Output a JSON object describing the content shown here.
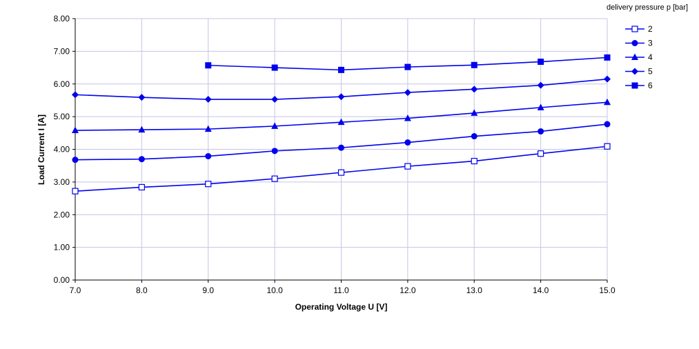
{
  "chart_data": {
    "type": "line",
    "xlabel": "Operating Voltage U [V]",
    "ylabel": "Load Current I [A]",
    "legend_title": "delivery pressure p [bar]",
    "legend_position": "top-right",
    "xlim": [
      7.0,
      15.0
    ],
    "ylim": [
      0.0,
      8.0
    ],
    "grid": true,
    "x_ticks": [
      "7.0",
      "8.0",
      "9.0",
      "10.0",
      "11.0",
      "12.0",
      "13.0",
      "14.0",
      "15.0"
    ],
    "y_ticks": [
      "0.00",
      "1.00",
      "2.00",
      "3.00",
      "4.00",
      "5.00",
      "6.00",
      "7.00",
      "8.00"
    ],
    "line_color": "#0000ee",
    "grid_color": "#c4c4e6",
    "series": [
      {
        "name": "2",
        "marker": "square-open",
        "x": [
          7,
          8,
          9,
          10,
          11,
          12,
          13,
          14,
          15
        ],
        "y": [
          2.72,
          2.84,
          2.94,
          3.1,
          3.29,
          3.48,
          3.64,
          3.87,
          4.09
        ]
      },
      {
        "name": "3",
        "marker": "circle",
        "x": [
          7,
          8,
          9,
          10,
          11,
          12,
          13,
          14,
          15
        ],
        "y": [
          3.68,
          3.7,
          3.79,
          3.95,
          4.05,
          4.21,
          4.4,
          4.55,
          4.77
        ]
      },
      {
        "name": "4",
        "marker": "triangle",
        "x": [
          7,
          8,
          9,
          10,
          11,
          12,
          13,
          14,
          15
        ],
        "y": [
          4.58,
          4.6,
          4.62,
          4.71,
          4.83,
          4.95,
          5.11,
          5.28,
          5.44
        ]
      },
      {
        "name": "5",
        "marker": "diamond",
        "x": [
          7,
          8,
          9,
          10,
          11,
          12,
          13,
          14,
          15
        ],
        "y": [
          5.67,
          5.59,
          5.53,
          5.53,
          5.61,
          5.74,
          5.84,
          5.96,
          6.15
        ]
      },
      {
        "name": "6",
        "marker": "square",
        "x": [
          9,
          10,
          11,
          12,
          13,
          14,
          15
        ],
        "y": [
          6.57,
          6.5,
          6.43,
          6.52,
          6.58,
          6.68,
          6.81
        ]
      }
    ]
  }
}
